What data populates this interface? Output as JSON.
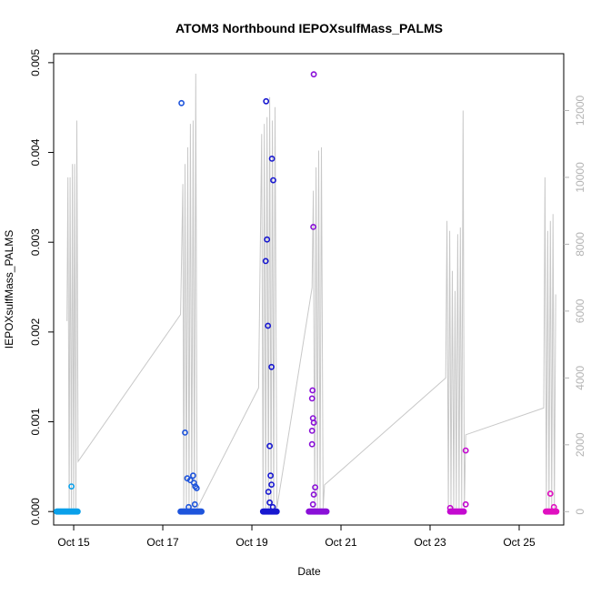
{
  "chart_data": {
    "type": "scatter",
    "title": "ATOM3 Northbound IEPOXsulfMass_PALMS",
    "xlabel": "Date",
    "ylabel": "IEPOXsulfMass_PALMS",
    "x_axis": {
      "range_days_oct": [
        14.55,
        26.0
      ],
      "ticks": [
        {
          "value": 15,
          "label": "Oct 15"
        },
        {
          "value": 17,
          "label": "Oct 17"
        },
        {
          "value": 19,
          "label": "Oct 19"
        },
        {
          "value": 21,
          "label": "Oct 21"
        },
        {
          "value": 23,
          "label": "Oct 23"
        },
        {
          "value": 25,
          "label": "Oct 25"
        }
      ]
    },
    "y_axis_left": {
      "range": [
        -0.00015,
        0.0051
      ],
      "ticks": [
        {
          "value": 0.0,
          "label": "0.000"
        },
        {
          "value": 0.001,
          "label": "0.001"
        },
        {
          "value": 0.002,
          "label": "0.002"
        },
        {
          "value": 0.003,
          "label": "0.003"
        },
        {
          "value": 0.004,
          "label": "0.004"
        },
        {
          "value": 0.005,
          "label": "0.005"
        }
      ]
    },
    "y_axis_right": {
      "range": [
        -400,
        13700
      ],
      "color": "#b3b3b3",
      "ticks": [
        {
          "value": 0,
          "label": "0"
        },
        {
          "value": 2000,
          "label": "2000"
        },
        {
          "value": 4000,
          "label": "4000"
        },
        {
          "value": 6000,
          "label": "6000"
        },
        {
          "value": 8000,
          "label": "8000"
        },
        {
          "value": 10000,
          "label": "10000"
        },
        {
          "value": 12000,
          "label": "12000"
        }
      ]
    },
    "grid": false,
    "altitude_line": {
      "color": "#c8c8c8",
      "points": [
        [
          14.85,
          5700
        ],
        [
          14.87,
          10000
        ],
        [
          14.9,
          100
        ],
        [
          14.92,
          10000
        ],
        [
          14.95,
          100
        ],
        [
          14.97,
          10400
        ],
        [
          15.0,
          100
        ],
        [
          15.02,
          10400
        ],
        [
          15.05,
          100
        ],
        [
          15.07,
          11700
        ],
        [
          15.1,
          1500
        ],
        [
          17.4,
          5900
        ],
        [
          17.45,
          9800
        ],
        [
          17.47,
          100
        ],
        [
          17.5,
          10400
        ],
        [
          17.53,
          100
        ],
        [
          17.56,
          10900
        ],
        [
          17.59,
          100
        ],
        [
          17.62,
          11600
        ],
        [
          17.65,
          100
        ],
        [
          17.68,
          11700
        ],
        [
          17.71,
          100
        ],
        [
          17.74,
          13100
        ],
        [
          17.77,
          100
        ],
        [
          19.15,
          3700
        ],
        [
          19.22,
          11300
        ],
        [
          19.25,
          100
        ],
        [
          19.28,
          11600
        ],
        [
          19.31,
          100
        ],
        [
          19.34,
          11800
        ],
        [
          19.37,
          100
        ],
        [
          19.4,
          12400
        ],
        [
          19.43,
          100
        ],
        [
          19.46,
          11700
        ],
        [
          19.49,
          100
        ],
        [
          19.52,
          12100
        ],
        [
          19.56,
          100
        ],
        [
          20.35,
          6700
        ],
        [
          20.38,
          9600
        ],
        [
          20.41,
          100
        ],
        [
          20.44,
          10300
        ],
        [
          20.47,
          100
        ],
        [
          20.5,
          10800
        ],
        [
          20.53,
          100
        ],
        [
          20.56,
          10900
        ],
        [
          20.6,
          100
        ],
        [
          20.63,
          800
        ],
        [
          23.35,
          4000
        ],
        [
          23.38,
          8700
        ],
        [
          23.41,
          100
        ],
        [
          23.44,
          8400
        ],
        [
          23.47,
          100
        ],
        [
          23.5,
          7200
        ],
        [
          23.53,
          100
        ],
        [
          23.56,
          6600
        ],
        [
          23.59,
          100
        ],
        [
          23.62,
          8300
        ],
        [
          23.65,
          100
        ],
        [
          23.68,
          8500
        ],
        [
          23.71,
          100
        ],
        [
          23.74,
          12000
        ],
        [
          23.77,
          100
        ],
        [
          23.8,
          2300
        ],
        [
          25.55,
          3100
        ],
        [
          25.58,
          10000
        ],
        [
          25.61,
          100
        ],
        [
          25.64,
          8400
        ],
        [
          25.67,
          100
        ],
        [
          25.7,
          8700
        ],
        [
          25.73,
          100
        ],
        [
          25.76,
          8900
        ],
        [
          25.79,
          100
        ],
        [
          25.82,
          6500
        ]
      ]
    },
    "series": [
      {
        "color": "#0aa0ea",
        "points": [
          [
            14.62,
            0
          ],
          [
            14.68,
            0
          ],
          [
            14.74,
            0
          ],
          [
            14.8,
            0
          ],
          [
            14.86,
            0
          ],
          [
            14.92,
            0
          ],
          [
            14.98,
            0
          ],
          [
            15.04,
            0
          ],
          [
            15.1,
            0
          ],
          [
            14.95,
            0.00028
          ]
        ]
      },
      {
        "color": "#1f55dc",
        "points": [
          [
            17.4,
            0
          ],
          [
            17.48,
            0
          ],
          [
            17.56,
            0
          ],
          [
            17.64,
            0
          ],
          [
            17.72,
            0
          ],
          [
            17.8,
            0
          ],
          [
            17.88,
            0
          ],
          [
            17.42,
            0.00455
          ],
          [
            17.5,
            0.00088
          ],
          [
            17.55,
            0.00037
          ],
          [
            17.62,
            0.00035
          ],
          [
            17.68,
            0.0004
          ],
          [
            17.7,
            0.00032
          ],
          [
            17.73,
            0.00028
          ],
          [
            17.76,
            0.00026
          ],
          [
            17.72,
            8e-05
          ],
          [
            17.58,
            5e-05
          ]
        ]
      },
      {
        "color": "#1818d0",
        "points": [
          [
            19.25,
            0
          ],
          [
            19.33,
            0
          ],
          [
            19.41,
            0
          ],
          [
            19.49,
            0
          ],
          [
            19.57,
            0
          ],
          [
            19.32,
            0.00457
          ],
          [
            19.45,
            0.00393
          ],
          [
            19.48,
            0.00369
          ],
          [
            19.34,
            0.00303
          ],
          [
            19.31,
            0.00279
          ],
          [
            19.36,
            0.00207
          ],
          [
            19.44,
            0.00161
          ],
          [
            19.4,
            0.00073
          ],
          [
            19.42,
            0.0004
          ],
          [
            19.44,
            0.0003
          ],
          [
            19.37,
            0.00022
          ],
          [
            19.4,
            0.0001
          ],
          [
            19.47,
            5e-05
          ]
        ]
      },
      {
        "color": "#8a10d8",
        "points": [
          [
            20.28,
            0
          ],
          [
            20.36,
            0
          ],
          [
            20.44,
            0
          ],
          [
            20.52,
            0
          ],
          [
            20.6,
            0
          ],
          [
            20.68,
            0
          ],
          [
            20.39,
            0.00487
          ],
          [
            20.38,
            0.00317
          ],
          [
            20.36,
            0.00135
          ],
          [
            20.35,
            0.00126
          ],
          [
            20.37,
            0.00104
          ],
          [
            20.39,
            0.00099
          ],
          [
            20.35,
            0.0009
          ],
          [
            20.35,
            0.00075
          ],
          [
            20.42,
            0.00027
          ],
          [
            20.39,
            0.00019
          ],
          [
            20.37,
            8e-05
          ]
        ]
      },
      {
        "color": "#c40ad0",
        "points": [
          [
            23.45,
            0
          ],
          [
            23.53,
            0
          ],
          [
            23.61,
            0
          ],
          [
            23.69,
            0
          ],
          [
            23.77,
            0
          ],
          [
            23.8,
            0.00068
          ],
          [
            23.8,
            8e-05
          ],
          [
            23.45,
            4e-05
          ]
        ]
      },
      {
        "color": "#e010c0",
        "points": [
          [
            25.6,
            0
          ],
          [
            25.66,
            0
          ],
          [
            25.72,
            0
          ],
          [
            25.78,
            0
          ],
          [
            25.84,
            0
          ],
          [
            25.7,
            0.0002
          ],
          [
            25.78,
            5e-05
          ]
        ]
      }
    ]
  }
}
